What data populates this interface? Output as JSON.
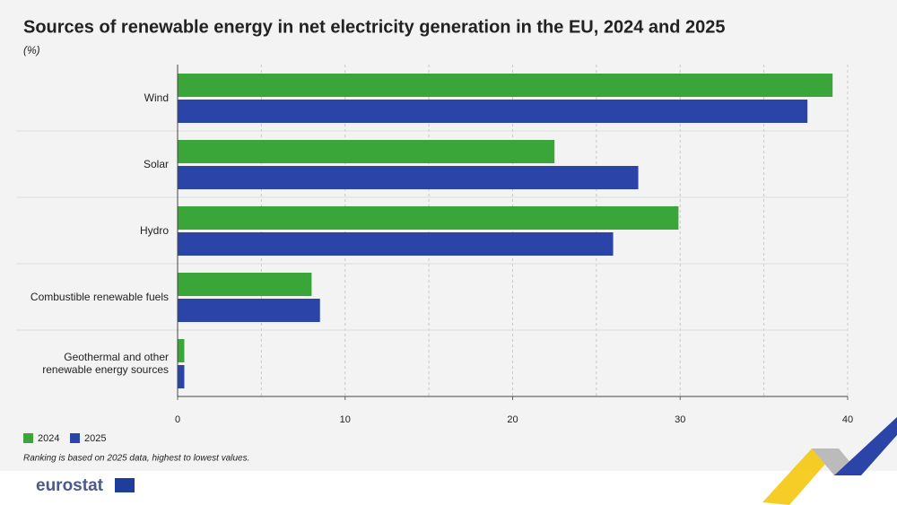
{
  "chart_data": {
    "type": "hbar",
    "title": "Sources of renewable energy in net electricity generation in the EU, 2024 and 2025",
    "subtitle": "(%)",
    "categories": [
      "Wind",
      "Solar",
      "Hydro",
      "Combustible renewable fuels",
      "Geothermal and other renewable energy sources"
    ],
    "series": [
      {
        "name": "2024",
        "color": "#3aa538",
        "values": [
          39.1,
          22.5,
          29.9,
          8.0,
          0.4
        ]
      },
      {
        "name": "2025",
        "color": "#2a44a8",
        "values": [
          37.6,
          27.5,
          26.0,
          8.5,
          0.4
        ]
      }
    ],
    "xlim": [
      0,
      40
    ],
    "xticks": [
      0,
      10,
      20,
      30,
      40
    ],
    "xgrid": [
      5,
      10,
      15,
      20,
      25,
      30,
      35,
      40
    ],
    "legend": "bottom-left",
    "note": "Ranking is based on 2025 data, highest to lowest values.",
    "logo": "eurostat"
  }
}
